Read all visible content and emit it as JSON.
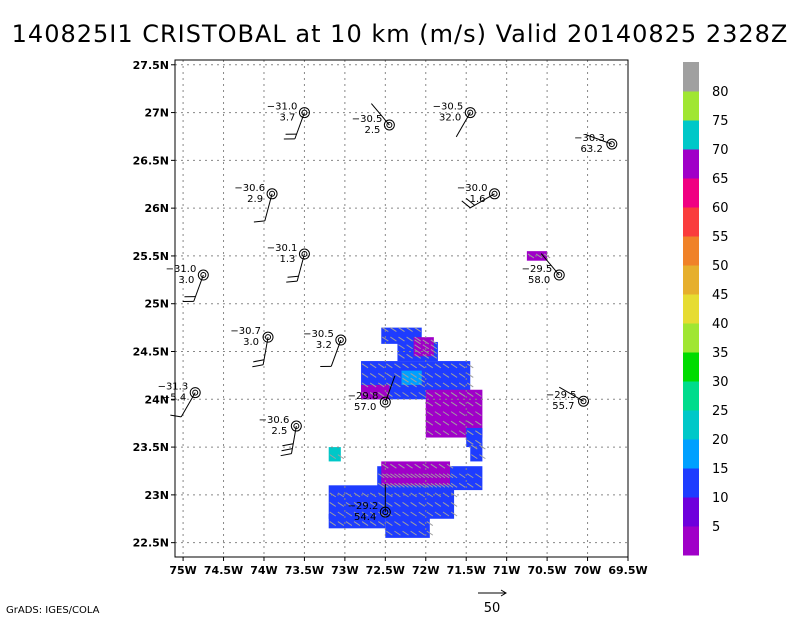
{
  "chart_data": {
    "type": "heatmap",
    "title": "140825I1 CRISTOBAL at 10 km (m/s) Valid 20140825 2328Z",
    "xlabel": "",
    "ylabel": "",
    "xlim": [
      -75.1,
      -69.5
    ],
    "ylim": [
      22.35,
      27.55
    ],
    "x_ticks": [
      "75W",
      "74.5W",
      "74W",
      "73.5W",
      "73W",
      "72.5W",
      "72W",
      "71.5W",
      "71W",
      "70.5W",
      "70W",
      "69.5W"
    ],
    "x_tick_values": [
      -75,
      -74.5,
      -74,
      -73.5,
      -73,
      -72.5,
      -72,
      -71.5,
      -71,
      -70.5,
      -70,
      -69.5
    ],
    "y_ticks": [
      "22.5N",
      "23N",
      "23.5N",
      "24N",
      "24.5N",
      "25N",
      "25.5N",
      "26N",
      "26.5N",
      "27N",
      "27.5N"
    ],
    "y_tick_values": [
      22.5,
      23,
      23.5,
      24,
      24.5,
      25,
      25.5,
      26,
      26.5,
      27,
      27.5
    ],
    "grid": true,
    "colorbar": {
      "labels": [
        "5",
        "10",
        "15",
        "20",
        "25",
        "30",
        "35",
        "40",
        "45",
        "50",
        "55",
        "60",
        "65",
        "70",
        "75",
        "80"
      ],
      "colors": [
        "#a000c8",
        "#6e00dc",
        "#1e3cff",
        "#00a0ff",
        "#00c8c8",
        "#00dc8c",
        "#00dc00",
        "#a0e632",
        "#e6dc32",
        "#e6af2d",
        "#f08228",
        "#fa3c3c",
        "#f00082",
        "#a000c8",
        "#00c8c8",
        "#a0e632",
        "#a0a0a0"
      ]
    },
    "stations": [
      {
        "lon": -73.5,
        "lat": 27.0,
        "top": "−31.0",
        "bottom": "3.7",
        "wind_dir": 200,
        "barbs": 2
      },
      {
        "lon": -72.45,
        "lat": 26.87,
        "top": "−30.5",
        "bottom": "2.5",
        "wind_dir": 320,
        "barbs": 0
      },
      {
        "lon": -71.45,
        "lat": 27.0,
        "top": "−30.5",
        "bottom": "32.0",
        "wind_dir": 210,
        "barbs": 0
      },
      {
        "lon": -69.7,
        "lat": 26.67,
        "top": "−30.3",
        "bottom": "63.2",
        "wind_dir": 290,
        "barbs": 0
      },
      {
        "lon": -73.9,
        "lat": 26.15,
        "top": "−30.6",
        "bottom": "2.9",
        "wind_dir": 195,
        "barbs": 1
      },
      {
        "lon": -71.15,
        "lat": 26.15,
        "top": "−30.0",
        "bottom": "1.6",
        "wind_dir": 240,
        "barbs": 2
      },
      {
        "lon": -73.5,
        "lat": 25.52,
        "top": "−30.1",
        "bottom": "1.3",
        "wind_dir": 195,
        "barbs": 2
      },
      {
        "lon": -74.75,
        "lat": 25.3,
        "top": "−31.0",
        "bottom": "3.0",
        "wind_dir": 200,
        "barbs": 2
      },
      {
        "lon": -70.35,
        "lat": 25.3,
        "top": "−29.5",
        "bottom": "58.0",
        "wind_dir": 320,
        "barbs": 0
      },
      {
        "lon": -73.95,
        "lat": 24.65,
        "top": "−30.7",
        "bottom": "3.0",
        "wind_dir": 190,
        "barbs": 2
      },
      {
        "lon": -73.05,
        "lat": 24.62,
        "top": "−30.5",
        "bottom": "3.2",
        "wind_dir": 200,
        "barbs": 1
      },
      {
        "lon": -74.85,
        "lat": 24.07,
        "top": "−31.3",
        "bottom": "−5.4",
        "wind_dir": 210,
        "barbs": 1
      },
      {
        "lon": -72.5,
        "lat": 23.97,
        "top": "−29.8",
        "bottom": "57.0",
        "wind_dir": 20,
        "barbs": 0
      },
      {
        "lon": -70.05,
        "lat": 23.98,
        "top": "−29.5",
        "bottom": "55.7",
        "wind_dir": 300,
        "barbs": 0
      },
      {
        "lon": -73.6,
        "lat": 23.72,
        "top": "−30.6",
        "bottom": "2.5",
        "wind_dir": 190,
        "barbs": 3
      },
      {
        "lon": -72.5,
        "lat": 22.82,
        "top": "−29.2",
        "bottom": "54.4",
        "wind_dir": 0,
        "barbs": 0
      }
    ],
    "wind_field": [
      {
        "lon0": -72.55,
        "lon1": -72.05,
        "lat0": 24.58,
        "lat1": 24.75,
        "value": 10
      },
      {
        "lon0": -72.35,
        "lon1": -71.85,
        "lat0": 24.4,
        "lat1": 24.6,
        "value": 10
      },
      {
        "lon0": -72.15,
        "lon1": -71.9,
        "lat0": 24.45,
        "lat1": 24.65,
        "value": 5
      },
      {
        "lon0": -72.8,
        "lon1": -71.45,
        "lat0": 24.0,
        "lat1": 24.4,
        "value": 10
      },
      {
        "lon0": -72.3,
        "lon1": -72.05,
        "lat0": 24.15,
        "lat1": 24.3,
        "value": 15
      },
      {
        "lon0": -72.8,
        "lon1": -72.45,
        "lat0": 24.0,
        "lat1": 24.15,
        "value": 5
      },
      {
        "lon0": -72.0,
        "lon1": -71.3,
        "lat0": 23.6,
        "lat1": 24.1,
        "value": 5
      },
      {
        "lon0": -71.5,
        "lon1": -71.3,
        "lat0": 23.5,
        "lat1": 23.7,
        "value": 10
      },
      {
        "lon0": -71.45,
        "lon1": -71.3,
        "lat0": 23.35,
        "lat1": 23.55,
        "value": 10
      },
      {
        "lon0": -72.6,
        "lon1": -71.3,
        "lat0": 23.05,
        "lat1": 23.3,
        "value": 10
      },
      {
        "lon0": -72.55,
        "lon1": -71.7,
        "lat0": 23.05,
        "lat1": 23.35,
        "value": 5
      },
      {
        "lon0": -73.2,
        "lon1": -71.65,
        "lat0": 22.75,
        "lat1": 23.1,
        "value": 10
      },
      {
        "lon0": -73.2,
        "lon1": -72.5,
        "lat0": 22.65,
        "lat1": 22.8,
        "value": 10
      },
      {
        "lon0": -72.5,
        "lon1": -71.95,
        "lat0": 22.55,
        "lat1": 22.8,
        "value": 10
      },
      {
        "lon0": -73.2,
        "lon1": -73.05,
        "lat0": 23.35,
        "lat1": 23.5,
        "value": 20
      },
      {
        "lon0": -70.75,
        "lon1": -70.5,
        "lat0": 25.45,
        "lat1": 25.55,
        "value": 5
      }
    ],
    "reference_vector": "50",
    "footer": "GrADS: IGES/COLA"
  }
}
